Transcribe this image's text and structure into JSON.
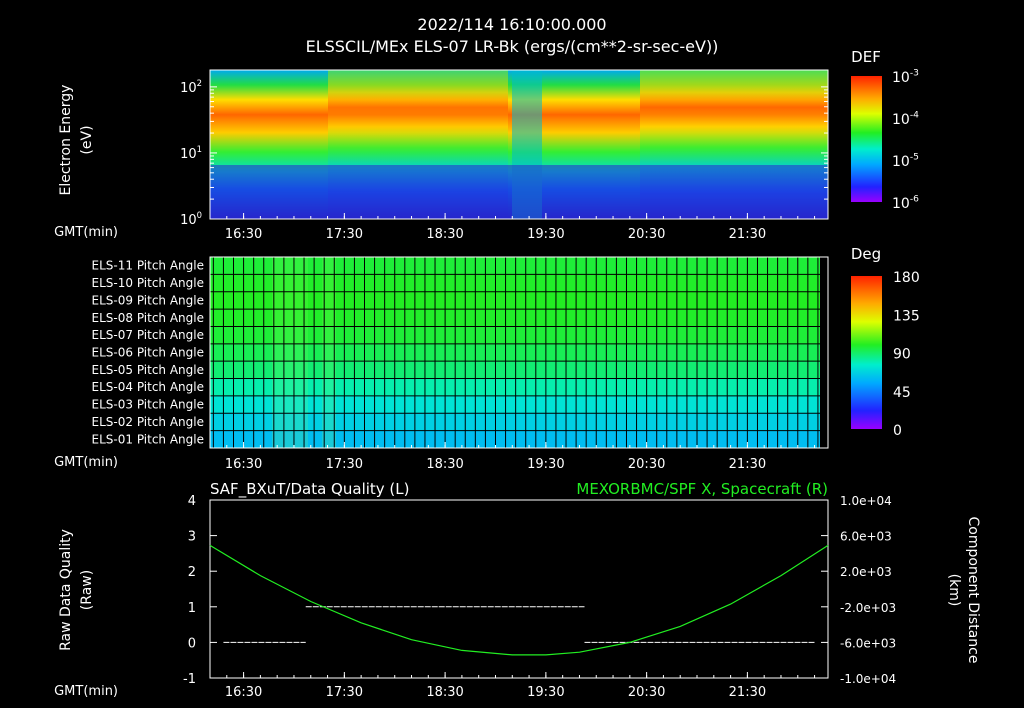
{
  "header": {
    "timestamp": "2022/114 16:10:00.000",
    "title": "ELSSCIL/MEx ELS-07 LR-Bk  (ergs/(cm**2-sr-sec-eV))"
  },
  "time_axis": {
    "label": "GMT(min)",
    "ticks": [
      "16:30",
      "17:30",
      "18:30",
      "19:30",
      "20:30",
      "21:30"
    ],
    "tick_minutes": [
      990,
      1050,
      1110,
      1170,
      1230,
      1290
    ],
    "range_minutes": [
      970,
      1338
    ]
  },
  "chart_data": [
    {
      "type": "heatmap",
      "name": "electron-energy-spectrogram",
      "ylabel_line1": "Electron Energy",
      "ylabel_line2": "(eV)",
      "y_ticks": [
        {
          "base": "10",
          "exp": "0",
          "value": 1
        },
        {
          "base": "10",
          "exp": "1",
          "value": 10
        },
        {
          "base": "10",
          "exp": "2",
          "value": 100
        }
      ],
      "ylim": [
        1,
        180
      ],
      "yscale": "log",
      "colorbar": {
        "title": "DEF",
        "ticks": [
          {
            "base": "10",
            "exp": "-3",
            "value": 0.001
          },
          {
            "base": "10",
            "exp": "-4",
            "value": 0.0001
          },
          {
            "base": "10",
            "exp": "-5",
            "value": 1e-05
          },
          {
            "base": "10",
            "exp": "-6",
            "value": 1e-06
          }
        ]
      }
    },
    {
      "type": "heatmap",
      "name": "pitch-angle-panel",
      "rows": [
        "ELS-11 Pitch Angle",
        "ELS-10 Pitch Angle",
        "ELS-09 Pitch Angle",
        "ELS-08 Pitch Angle",
        "ELS-07 Pitch Angle",
        "ELS-06 Pitch Angle",
        "ELS-05 Pitch Angle",
        "ELS-04 Pitch Angle",
        "ELS-03 Pitch Angle",
        "ELS-02 Pitch Angle",
        "ELS-01 Pitch Angle"
      ],
      "row_values_deg": [
        96,
        98,
        99,
        98,
        96,
        92,
        88,
        80,
        72,
        66,
        60
      ],
      "colorbar": {
        "title": "Deg",
        "ticks": [
          "180",
          "135",
          "90",
          "45",
          "0"
        ],
        "tick_values": [
          180,
          135,
          90,
          45,
          0
        ]
      }
    },
    {
      "type": "line",
      "name": "data-quality-and-position",
      "left_title": "SAF_BXuT/Data Quality (L)",
      "right_title": "MEXORBMC/SPF X, Spacecraft (R)",
      "ylabel_left_line1": "Raw Data Quality",
      "ylabel_left_line2": "(Raw)",
      "ylabel_right_line1": "Component Distance",
      "ylabel_right_line2": "(km)",
      "left_ticks": [
        "4",
        "3",
        "2",
        "1",
        "0",
        "-1"
      ],
      "left_tick_values": [
        4,
        3,
        2,
        1,
        0,
        -1
      ],
      "ylim_left": [
        -1,
        4
      ],
      "right_ticks": [
        "1.0e+04",
        "6.0e+03",
        "2.0e+03",
        "-2.0e+03",
        "-6.0e+03",
        "-1.0e+04"
      ],
      "right_tick_values": [
        10000,
        6000,
        2000,
        -2000,
        -6000,
        -10000
      ],
      "ylim_right": [
        -10000,
        10000
      ],
      "series": [
        {
          "name": "Raw Data Quality",
          "axis": "left",
          "color": "#ffffff",
          "segments": [
            {
              "start_min": 978,
              "end_min": 1027,
              "value": 0
            },
            {
              "start_min": 1027,
              "end_min": 1193,
              "value": 1
            },
            {
              "start_min": 1193,
              "end_min": 1330,
              "value": 0
            }
          ]
        },
        {
          "name": "SPF X, Spacecraft",
          "axis": "right",
          "color": "#22ee22",
          "x_minutes": [
            970,
            1000,
            1030,
            1060,
            1090,
            1120,
            1150,
            1170,
            1190,
            1220,
            1250,
            1280,
            1310,
            1338
          ],
          "values_km": [
            4900,
            1500,
            -1400,
            -3800,
            -5700,
            -6900,
            -7400,
            -7400,
            -7100,
            -6000,
            -4200,
            -1700,
            1500,
            4900
          ]
        }
      ]
    }
  ],
  "colors": {
    "background": "#000000",
    "text": "#ffffff",
    "position_line": "#22ee22",
    "quality_line": "#ffffff"
  }
}
